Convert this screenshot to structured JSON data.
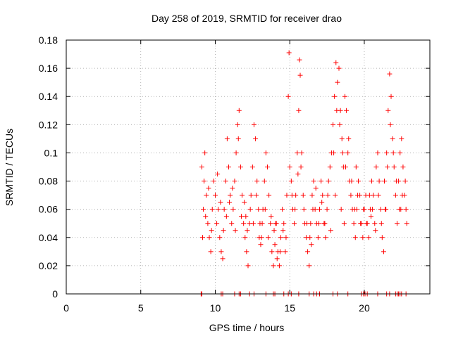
{
  "chart_data": {
    "type": "scatter",
    "title": "Day 258 of 2019, SRMTID for receiver drao",
    "xlabel": "GPS time / hours",
    "ylabel": "SRMTID / TECUs",
    "xlim": [
      0,
      24.4
    ],
    "ylim": [
      0,
      0.18
    ],
    "xticks": [
      0,
      5,
      10,
      15,
      20
    ],
    "xtick_labels": [
      "0",
      "5",
      "10",
      "15",
      "20"
    ],
    "yticks": [
      0,
      0.02,
      0.04,
      0.06,
      0.08,
      0.1,
      0.12,
      0.14,
      0.16,
      0.18
    ],
    "ytick_labels": [
      "0",
      "0.02",
      "0.04",
      "0.06",
      "0.08",
      "0.1",
      "0.12",
      "0.14",
      "0.16",
      "0.18"
    ],
    "grid": true,
    "marker": "+",
    "color": "#ff0000",
    "series": [
      {
        "name": "SRMTID",
        "points": [
          [
            9.1,
            0.09
          ],
          [
            9.2,
            0.06
          ],
          [
            9.25,
            0.08
          ],
          [
            9.3,
            0.1
          ],
          [
            9.4,
            0.07
          ],
          [
            9.5,
            0.05
          ],
          [
            9.6,
            0.04
          ],
          [
            9.7,
            0.03
          ],
          [
            9.8,
            0.06
          ],
          [
            9.9,
            0.08
          ],
          [
            10.0,
            0.07
          ],
          [
            10.1,
            0.05
          ],
          [
            10.2,
            0.06
          ],
          [
            10.3,
            0.04
          ],
          [
            10.4,
            0.03
          ],
          [
            10.5,
            0.025
          ],
          [
            10.6,
            0.06
          ],
          [
            10.7,
            0.08
          ],
          [
            10.8,
            0.11
          ],
          [
            10.9,
            0.09
          ],
          [
            11.0,
            0.07
          ],
          [
            11.1,
            0.05
          ],
          [
            11.2,
            0.06
          ],
          [
            11.3,
            0.08
          ],
          [
            11.4,
            0.1
          ],
          [
            11.5,
            0.12
          ],
          [
            11.6,
            0.13
          ],
          [
            11.7,
            0.09
          ],
          [
            11.8,
            0.07
          ],
          [
            11.9,
            0.05
          ],
          [
            12.0,
            0.04
          ],
          [
            12.1,
            0.03
          ],
          [
            12.2,
            0.02
          ],
          [
            12.3,
            0.05
          ],
          [
            12.4,
            0.07
          ],
          [
            12.5,
            0.09
          ],
          [
            12.6,
            0.12
          ],
          [
            12.7,
            0.11
          ],
          [
            12.8,
            0.08
          ],
          [
            12.9,
            0.06
          ],
          [
            13.0,
            0.05
          ],
          [
            13.1,
            0.04
          ],
          [
            13.2,
            0.06
          ],
          [
            13.3,
            0.08
          ],
          [
            13.4,
            0.1
          ],
          [
            13.5,
            0.09
          ],
          [
            13.6,
            0.07
          ],
          [
            13.7,
            0.05
          ],
          [
            13.8,
            0.03
          ],
          [
            13.9,
            0.02
          ],
          [
            14.0,
            0.035
          ],
          [
            14.1,
            0.05
          ],
          [
            14.2,
            0.03
          ],
          [
            14.3,
            0.02
          ],
          [
            14.4,
            0.04
          ],
          [
            14.5,
            0.06
          ],
          [
            14.6,
            0.05
          ],
          [
            14.7,
            0.03
          ],
          [
            14.8,
            0.07
          ],
          [
            14.9,
            0.14
          ],
          [
            14.95,
            0.171
          ],
          [
            15.0,
            0.09
          ],
          [
            15.1,
            0.08
          ],
          [
            15.2,
            0.06
          ],
          [
            15.3,
            0.05
          ],
          [
            15.4,
            0.07
          ],
          [
            15.5,
            0.1
          ],
          [
            15.6,
            0.13
          ],
          [
            15.65,
            0.166
          ],
          [
            15.7,
            0.155
          ],
          [
            15.8,
            0.1
          ],
          [
            15.9,
            0.07
          ],
          [
            16.0,
            0.05
          ],
          [
            16.1,
            0.04
          ],
          [
            16.2,
            0.03
          ],
          [
            16.3,
            0.02
          ],
          [
            16.4,
            0.05
          ],
          [
            16.5,
            0.07
          ],
          [
            16.6,
            0.08
          ],
          [
            16.7,
            0.06
          ],
          [
            16.8,
            0.05
          ],
          [
            16.9,
            0.04
          ],
          [
            17.0,
            0.06
          ],
          [
            17.1,
            0.08
          ],
          [
            17.2,
            0.07
          ],
          [
            17.3,
            0.05
          ],
          [
            17.4,
            0.04
          ],
          [
            17.5,
            0.06
          ],
          [
            17.6,
            0.08
          ],
          [
            17.7,
            0.09
          ],
          [
            17.8,
            0.1
          ],
          [
            17.9,
            0.12
          ],
          [
            18.0,
            0.14
          ],
          [
            18.1,
            0.164
          ],
          [
            18.2,
            0.15
          ],
          [
            18.3,
            0.16
          ],
          [
            18.4,
            0.13
          ],
          [
            18.5,
            0.11
          ],
          [
            18.6,
            0.09
          ],
          [
            18.7,
            0.14
          ],
          [
            18.8,
            0.13
          ],
          [
            18.9,
            0.1
          ],
          [
            19.0,
            0.08
          ],
          [
            19.1,
            0.07
          ],
          [
            19.2,
            0.06
          ],
          [
            19.3,
            0.05
          ],
          [
            19.4,
            0.04
          ],
          [
            19.5,
            0.06
          ],
          [
            19.6,
            0.08
          ],
          [
            19.7,
            0.07
          ],
          [
            19.8,
            0.05
          ],
          [
            19.9,
            0.04
          ],
          [
            20.0,
            0.06
          ],
          [
            20.1,
            0.07
          ],
          [
            20.2,
            0.05
          ],
          [
            20.3,
            0.04
          ],
          [
            20.4,
            0.06
          ],
          [
            20.5,
            0.08
          ],
          [
            20.6,
            0.07
          ],
          [
            20.7,
            0.05
          ],
          [
            20.8,
            0.09
          ],
          [
            20.9,
            0.1
          ],
          [
            21.0,
            0.08
          ],
          [
            21.1,
            0.06
          ],
          [
            21.2,
            0.04
          ],
          [
            21.3,
            0.03
          ],
          [
            21.4,
            0.06
          ],
          [
            21.5,
            0.1
          ],
          [
            21.6,
            0.13
          ],
          [
            21.7,
            0.156
          ],
          [
            21.8,
            0.14
          ],
          [
            21.9,
            0.11
          ],
          [
            22.0,
            0.09
          ],
          [
            22.1,
            0.07
          ],
          [
            22.2,
            0.05
          ],
          [
            22.3,
            0.08
          ],
          [
            22.4,
            0.1
          ],
          [
            22.5,
            0.11
          ],
          [
            22.6,
            0.09
          ],
          [
            22.7,
            0.07
          ],
          [
            22.8,
            0.06
          ],
          [
            9.15,
            0.04
          ],
          [
            9.35,
            0.055
          ],
          [
            9.55,
            0.075
          ],
          [
            9.75,
            0.045
          ],
          [
            10.15,
            0.085
          ],
          [
            10.35,
            0.065
          ],
          [
            10.55,
            0.045
          ],
          [
            10.75,
            0.055
          ],
          [
            10.95,
            0.065
          ],
          [
            11.15,
            0.075
          ],
          [
            11.35,
            0.045
          ],
          [
            11.55,
            0.11
          ],
          [
            11.75,
            0.055
          ],
          [
            11.95,
            0.065
          ],
          [
            12.15,
            0.045
          ],
          [
            12.35,
            0.06
          ],
          [
            12.55,
            0.05
          ],
          [
            12.75,
            0.07
          ],
          [
            12.95,
            0.04
          ],
          [
            13.15,
            0.05
          ],
          [
            13.35,
            0.06
          ],
          [
            13.55,
            0.04
          ],
          [
            13.75,
            0.055
          ],
          [
            13.95,
            0.045
          ],
          [
            14.15,
            0.025
          ],
          [
            14.35,
            0.03
          ],
          [
            14.55,
            0.045
          ],
          [
            14.75,
            0.04
          ],
          [
            15.15,
            0.07
          ],
          [
            15.35,
            0.06
          ],
          [
            15.55,
            0.085
          ],
          [
            15.75,
            0.09
          ],
          [
            15.95,
            0.06
          ],
          [
            16.15,
            0.05
          ],
          [
            16.35,
            0.04
          ],
          [
            16.55,
            0.06
          ],
          [
            16.75,
            0.075
          ],
          [
            16.95,
            0.05
          ],
          [
            17.15,
            0.065
          ],
          [
            17.35,
            0.05
          ],
          [
            17.55,
            0.07
          ],
          [
            17.75,
            0.045
          ],
          [
            17.95,
            0.1
          ],
          [
            18.15,
            0.13
          ],
          [
            18.35,
            0.12
          ],
          [
            18.55,
            0.1
          ],
          [
            18.75,
            0.09
          ],
          [
            18.95,
            0.11
          ],
          [
            19.15,
            0.08
          ],
          [
            19.35,
            0.06
          ],
          [
            19.55,
            0.07
          ],
          [
            19.75,
            0.05
          ],
          [
            19.95,
            0.06
          ],
          [
            20.15,
            0.05
          ],
          [
            20.35,
            0.07
          ],
          [
            20.55,
            0.06
          ],
          [
            20.75,
            0.045
          ],
          [
            20.95,
            0.07
          ],
          [
            21.15,
            0.05
          ],
          [
            21.35,
            0.08
          ],
          [
            21.55,
            0.09
          ],
          [
            21.75,
            0.12
          ],
          [
            21.95,
            0.1
          ],
          [
            22.15,
            0.08
          ],
          [
            22.35,
            0.06
          ],
          [
            22.55,
            0.07
          ],
          [
            22.75,
            0.08
          ],
          [
            22.85,
            0.05
          ],
          [
            18.05,
            0.07
          ],
          [
            18.45,
            0.06
          ],
          [
            18.65,
            0.05
          ],
          [
            19.45,
            0.09
          ],
          [
            20.45,
            0.055
          ],
          [
            21.45,
            0.06
          ],
          [
            22.45,
            0.06
          ],
          [
            16.45,
            0.035
          ],
          [
            14.05,
            0.05
          ],
          [
            13.05,
            0.035
          ],
          [
            12.05,
            0.055
          ],
          [
            9.05,
            0.0
          ],
          [
            9.1,
            0.0
          ],
          [
            10.4,
            0.0
          ],
          [
            10.5,
            0.0
          ],
          [
            11.3,
            0.0
          ],
          [
            11.6,
            0.0
          ],
          [
            11.7,
            0.0
          ],
          [
            12.3,
            0.0
          ],
          [
            12.6,
            0.0
          ],
          [
            13.4,
            0.0
          ],
          [
            13.9,
            0.0
          ],
          [
            14.0,
            0.0
          ],
          [
            14.6,
            0.0
          ],
          [
            14.9,
            0.0
          ],
          [
            15.1,
            0.0
          ],
          [
            15.6,
            0.0
          ],
          [
            16.3,
            0.0
          ],
          [
            16.6,
            0.0
          ],
          [
            16.8,
            0.0
          ],
          [
            17.0,
            0.0
          ],
          [
            17.9,
            0.0
          ],
          [
            18.2,
            0.0
          ],
          [
            18.9,
            0.0
          ],
          [
            19.8,
            0.0
          ],
          [
            19.95,
            0.0
          ],
          [
            20.05,
            0.0
          ],
          [
            20.2,
            0.0
          ],
          [
            20.9,
            0.0
          ],
          [
            21.5,
            0.0
          ],
          [
            21.7,
            0.0
          ],
          [
            22.1,
            0.0
          ],
          [
            22.2,
            0.0
          ],
          [
            22.3,
            0.0
          ],
          [
            22.4,
            0.0
          ],
          [
            22.5,
            0.0
          ],
          [
            22.8,
            0.0
          ]
        ]
      }
    ]
  }
}
